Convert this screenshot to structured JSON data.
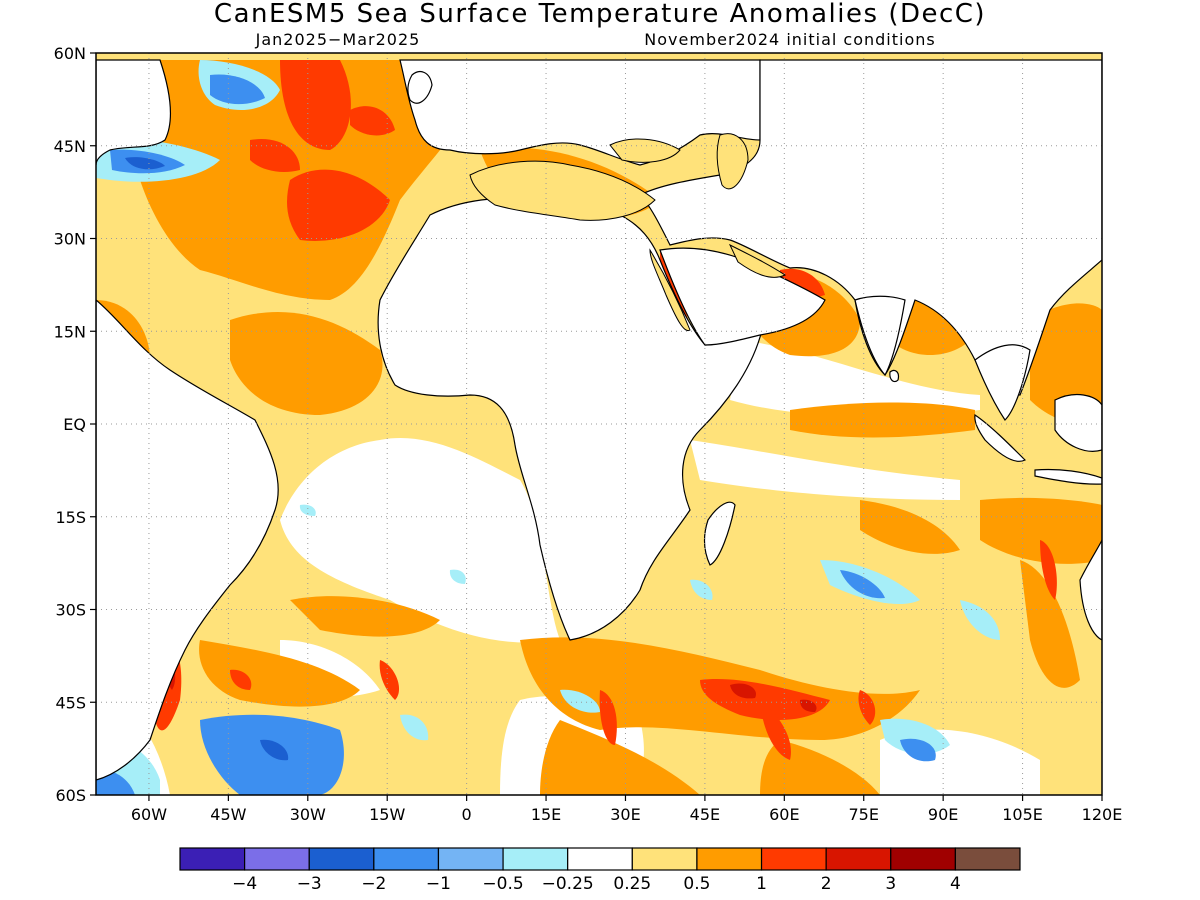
{
  "header": {
    "title": "CanESM5 Sea Surface Temperature Anomalies (DecC)",
    "period": "Jan2025−Mar2025",
    "init": "November2024 initial conditions"
  },
  "map": {
    "lon_range": [
      -70,
      120
    ],
    "lat_range": [
      -60,
      60
    ],
    "lat_labels": [
      "60N",
      "45N",
      "30N",
      "15N",
      "EQ",
      "15S",
      "30S",
      "45S",
      "60S"
    ],
    "lon_labels": [
      "60W",
      "45W",
      "30W",
      "15W",
      "0",
      "15E",
      "30E",
      "45E",
      "60E",
      "75E",
      "90E",
      "105E",
      "120E"
    ],
    "grid": true
  },
  "colorbar": {
    "colors": [
      "#3b1fb5",
      "#7b6ee8",
      "#1b5fd0",
      "#3d8ff0",
      "#74b4f4",
      "#a6eef8",
      "#ffffff",
      "#ffe27a",
      "#ff9c00",
      "#ff3a00",
      "#d81500",
      "#a00000",
      "#7a4d3c"
    ],
    "labels": [
      "−4",
      "−3",
      "−2",
      "−1",
      "−0.5",
      "−0.25",
      "0.25",
      "0.5",
      "1",
      "2",
      "3",
      "4"
    ]
  }
}
